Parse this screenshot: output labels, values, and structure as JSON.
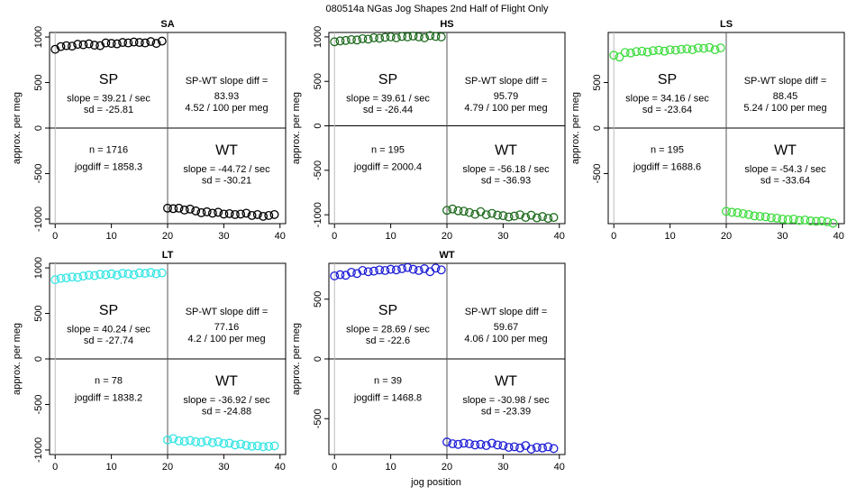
{
  "figure": {
    "title": "080514a   NGas Jog Shapes 2nd Half of Flight Only",
    "xlabel": "jog position"
  },
  "chart_data": [
    {
      "type": "scatter",
      "title": "SA",
      "ylabel": "approx. per meg",
      "color": "#000000",
      "xlim": [
        -1,
        41
      ],
      "ylim": [
        -1050,
        1050
      ],
      "xticks": [
        0,
        10,
        20,
        30,
        40
      ],
      "yticks": [
        -1000,
        -500,
        0,
        500,
        1000
      ],
      "split_x": 20,
      "x": [
        0,
        1,
        2,
        3,
        4,
        5,
        6,
        7,
        8,
        9,
        10,
        11,
        12,
        13,
        14,
        15,
        16,
        17,
        18,
        19,
        20,
        21,
        22,
        23,
        24,
        25,
        26,
        27,
        28,
        29,
        30,
        31,
        32,
        33,
        34,
        35,
        36,
        37,
        38,
        39
      ],
      "y": [
        865,
        895,
        905,
        900,
        920,
        915,
        925,
        910,
        905,
        935,
        930,
        925,
        940,
        935,
        945,
        940,
        935,
        950,
        930,
        955,
        -880,
        -885,
        -880,
        -900,
        -890,
        -910,
        -930,
        -920,
        -935,
        -925,
        -945,
        -940,
        -950,
        -945,
        -935,
        -960,
        -950,
        -970,
        -960,
        -950
      ],
      "annotations": {
        "sp_label": "SP",
        "sp_slope": "slope = 39.21 / sec",
        "sp_sd": "sd = -25.81",
        "diff_title": "SP-WT slope diff =",
        "diff_value": "83.93",
        "diff_per_meg": "4.52 / 100 per meg",
        "n": "n = 1716",
        "jogdiff": "jogdiff = 1858.3",
        "wt_label": "WT",
        "wt_slope": "slope = -44.72 / sec",
        "wt_sd": "sd = -30.21"
      }
    },
    {
      "type": "scatter",
      "title": "HS",
      "ylabel": "approx. per meg",
      "color": "#1f6b1f",
      "xlim": [
        -1,
        41
      ],
      "ylim": [
        -1100,
        1050
      ],
      "xticks": [
        0,
        10,
        20,
        30,
        40
      ],
      "yticks": [
        -1000,
        -500,
        0,
        500,
        1000
      ],
      "split_x": 20,
      "x": [
        0,
        1,
        2,
        3,
        4,
        5,
        6,
        7,
        8,
        9,
        10,
        11,
        12,
        13,
        14,
        15,
        16,
        17,
        18,
        19,
        20,
        21,
        22,
        23,
        24,
        25,
        26,
        27,
        28,
        29,
        30,
        31,
        32,
        33,
        34,
        35,
        36,
        37,
        38,
        39
      ],
      "y": [
        945,
        955,
        960,
        970,
        965,
        980,
        975,
        990,
        985,
        995,
        1000,
        990,
        1005,
        1000,
        1010,
        1000,
        990,
        1015,
        1005,
        1000,
        -950,
        -935,
        -955,
        -960,
        -975,
        -995,
        -965,
        -1000,
        -985,
        -1005,
        -1010,
        -1025,
        -1015,
        -1000,
        -1030,
        -1005,
        -1035,
        -1020,
        -1040,
        -1030
      ],
      "annotations": {
        "sp_label": "SP",
        "sp_slope": "slope = 39.61 / sec",
        "sp_sd": "sd = -26.44",
        "diff_title": "SP-WT slope diff =",
        "diff_value": "95.79",
        "diff_per_meg": "4.79 / 100 per meg",
        "n": "n = 195",
        "jogdiff": "jogdiff = 2000.4",
        "wt_label": "WT",
        "wt_slope": "slope = -56.18 / sec",
        "wt_sd": "sd = -36.93"
      }
    },
    {
      "type": "scatter",
      "title": "LS",
      "ylabel": "approx. per meg",
      "color": "#3ddc3d",
      "xlim": [
        -1,
        41
      ],
      "ylim": [
        -1050,
        1050
      ],
      "xticks": [
        0,
        10,
        20,
        30,
        40
      ],
      "yticks": [
        -500,
        0,
        500
      ],
      "split_x": 20,
      "x": [
        0,
        1,
        2,
        3,
        4,
        5,
        6,
        7,
        8,
        9,
        10,
        11,
        12,
        13,
        14,
        15,
        16,
        17,
        18,
        19,
        20,
        21,
        22,
        23,
        24,
        25,
        26,
        27,
        28,
        29,
        30,
        31,
        32,
        33,
        34,
        35,
        36,
        37,
        38,
        39
      ],
      "y": [
        800,
        780,
        830,
        825,
        840,
        845,
        835,
        850,
        855,
        845,
        860,
        855,
        865,
        870,
        860,
        880,
        875,
        885,
        860,
        880,
        -915,
        -925,
        -930,
        -940,
        -950,
        -965,
        -970,
        -975,
        -985,
        -990,
        -1000,
        -1005,
        -1000,
        -1015,
        -1010,
        -1020,
        -1025,
        -1020,
        -1030,
        -1045
      ],
      "annotations": {
        "sp_label": "SP",
        "sp_slope": "slope = 34.16 / sec",
        "sp_sd": "sd = -23.64",
        "diff_title": "SP-WT slope diff =",
        "diff_value": "88.45",
        "diff_per_meg": "5.24 / 100 per meg",
        "n": "n = 195",
        "jogdiff": "jogdiff = 1688.6",
        "wt_label": "WT",
        "wt_slope": "slope = -54.3 / sec",
        "wt_sd": "sd = -33.64"
      }
    },
    {
      "type": "scatter",
      "title": "LT",
      "ylabel": "approx. per meg",
      "color": "#35e5e5",
      "xlim": [
        -1,
        41
      ],
      "ylim": [
        -1050,
        1050
      ],
      "xticks": [
        0,
        10,
        20,
        30,
        40
      ],
      "yticks": [
        -1000,
        -500,
        0,
        500,
        1000
      ],
      "split_x": 20,
      "x": [
        0,
        1,
        2,
        3,
        4,
        5,
        6,
        7,
        8,
        9,
        10,
        11,
        12,
        13,
        14,
        15,
        16,
        17,
        18,
        19,
        20,
        21,
        22,
        23,
        24,
        25,
        26,
        27,
        28,
        29,
        30,
        31,
        32,
        33,
        34,
        35,
        36,
        37,
        38,
        39
      ],
      "y": [
        870,
        885,
        890,
        900,
        895,
        910,
        920,
        915,
        930,
        925,
        935,
        920,
        940,
        935,
        925,
        945,
        940,
        950,
        935,
        945,
        -890,
        -875,
        -900,
        -905,
        -895,
        -910,
        -915,
        -900,
        -920,
        -910,
        -930,
        -925,
        -945,
        -935,
        -950,
        -960,
        -955,
        -965,
        -960,
        -955
      ],
      "annotations": {
        "sp_label": "SP",
        "sp_slope": "slope = 40.24 / sec",
        "sp_sd": "sd = -27.74",
        "diff_title": "SP-WT slope diff =",
        "diff_value": "77.16",
        "diff_per_meg": "4.2 / 100 per meg",
        "n": "n = 78",
        "jogdiff": "jogdiff = 1838.2",
        "wt_label": "WT",
        "wt_slope": "slope = -36.92 / sec",
        "wt_sd": "sd = -24.88"
      }
    },
    {
      "type": "scatter",
      "title": "WT",
      "ylabel": "approx. per meg",
      "color": "#1f1fd6",
      "xlim": [
        -1,
        41
      ],
      "ylim": [
        -800,
        800
      ],
      "xticks": [
        0,
        10,
        20,
        30,
        40
      ],
      "yticks": [
        -500,
        0,
        500
      ],
      "split_x": 20,
      "x": [
        0,
        1,
        2,
        3,
        4,
        5,
        6,
        7,
        8,
        9,
        10,
        11,
        12,
        13,
        14,
        15,
        16,
        17,
        18,
        19,
        20,
        21,
        22,
        23,
        24,
        25,
        26,
        27,
        28,
        29,
        30,
        31,
        32,
        33,
        34,
        35,
        36,
        37,
        38,
        39
      ],
      "y": [
        695,
        705,
        700,
        725,
        715,
        740,
        730,
        735,
        745,
        740,
        750,
        745,
        755,
        765,
        750,
        740,
        755,
        730,
        760,
        745,
        -695,
        -710,
        -715,
        -705,
        -710,
        -720,
        -715,
        -725,
        -705,
        -720,
        -725,
        -740,
        -735,
        -745,
        -725,
        -755,
        -740,
        -745,
        -735,
        -750
      ],
      "annotations": {
        "sp_label": "SP",
        "sp_slope": "slope = 28.69 / sec",
        "sp_sd": "sd = -22.6",
        "diff_title": "SP-WT slope diff =",
        "diff_value": "59.67",
        "diff_per_meg": "4.06 / 100 per meg",
        "n": "n = 39",
        "jogdiff": "jogdiff = 1468.8",
        "wt_label": "WT",
        "wt_slope": "slope = -30.98 / sec",
        "wt_sd": "sd = -23.39"
      }
    }
  ]
}
